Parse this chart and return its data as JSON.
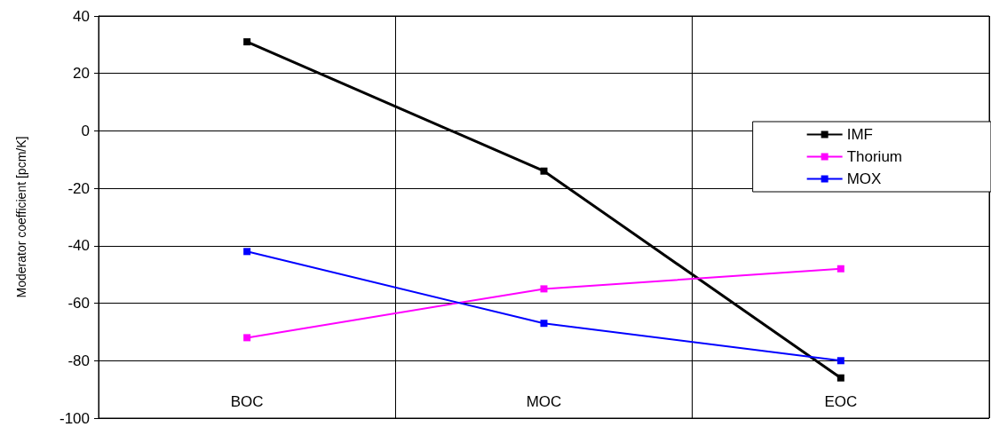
{
  "chart_data": {
    "type": "line",
    "ylabel": "Moderator coefficient [pcm/K]",
    "categories": [
      "BOC",
      "MOC",
      "EOC"
    ],
    "series": [
      {
        "name": "IMF",
        "color": "#000000",
        "values": [
          31,
          -14,
          -86
        ]
      },
      {
        "name": "Thorium",
        "color": "#ff00ff",
        "values": [
          -72,
          -55,
          -48
        ]
      },
      {
        "name": "MOX",
        "color": "#0000ff",
        "values": [
          -42,
          -67,
          -80
        ]
      }
    ],
    "ylim": [
      -100,
      40
    ],
    "yticks": [
      -100,
      -80,
      -60,
      -40,
      -20,
      0,
      20,
      40
    ],
    "grid": true,
    "legend": "top right",
    "marker": "square",
    "line_style": "solid"
  }
}
